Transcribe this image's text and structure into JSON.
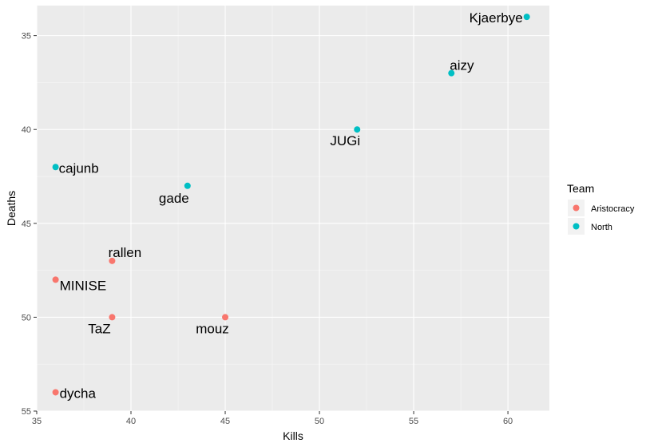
{
  "chart_data": {
    "type": "scatter",
    "title": "",
    "xlabel": "Kills",
    "ylabel": "Deaths",
    "xlim": [
      35,
      62.2
    ],
    "ylim": [
      55,
      33.4
    ],
    "y_reversed": true,
    "grid": true,
    "x_ticks": [
      35,
      40,
      45,
      50,
      55,
      60
    ],
    "y_ticks": [
      35,
      40,
      45,
      50,
      55
    ],
    "legend": {
      "title": "Team",
      "position": "right",
      "entries": [
        {
          "name": "Aristocracy",
          "color": "#F8766D"
        },
        {
          "name": "North",
          "color": "#00BFC4"
        }
      ]
    },
    "series": [
      {
        "name": "Aristocracy",
        "color": "#F8766D",
        "points": [
          {
            "label": "rallen",
            "x": 39,
            "y": 47
          },
          {
            "label": "MINISE",
            "x": 36,
            "y": 48
          },
          {
            "label": "TaZ",
            "x": 39,
            "y": 50
          },
          {
            "label": "mouz",
            "x": 45,
            "y": 50
          },
          {
            "label": "dycha",
            "x": 36,
            "y": 54
          }
        ]
      },
      {
        "name": "North",
        "color": "#00BFC4",
        "points": [
          {
            "label": "Kjaerbye",
            "x": 61,
            "y": 34
          },
          {
            "label": "aizy",
            "x": 57,
            "y": 37
          },
          {
            "label": "JUGi",
            "x": 52,
            "y": 40
          },
          {
            "label": "cajunb",
            "x": 36,
            "y": 42
          },
          {
            "label": "gade",
            "x": 43,
            "y": 43
          }
        ]
      }
    ]
  }
}
